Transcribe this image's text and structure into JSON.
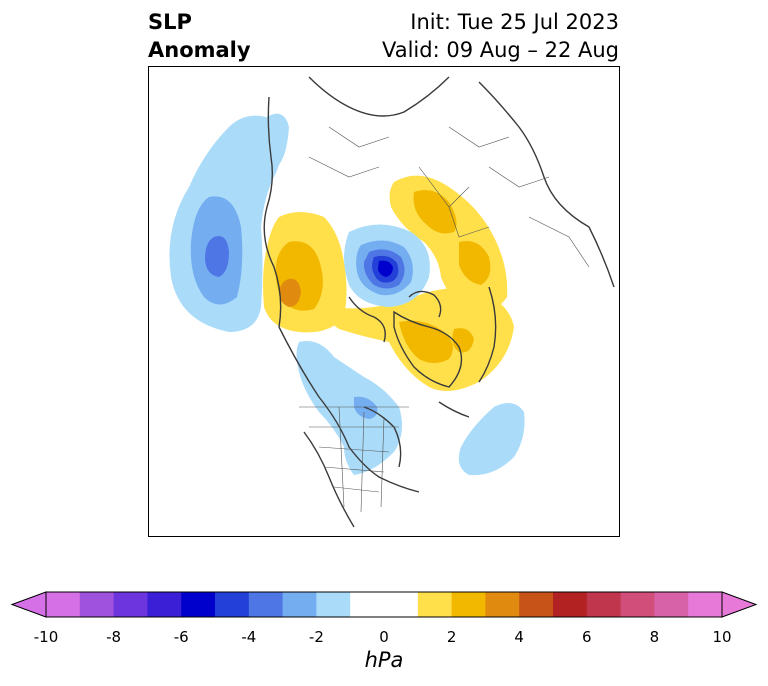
{
  "title": {
    "left_line1": "SLP",
    "left_line2": "Anomaly",
    "right_line1": "Init: Tue 25 Jul 2023",
    "right_line2": "Valid: 09 Aug – 22 Aug"
  },
  "colorbar": {
    "unit": "hPa",
    "tick_labels": [
      "-10",
      "-8",
      "-6",
      "-4",
      "-2",
      "0",
      "2",
      "4",
      "6",
      "8",
      "10"
    ],
    "colors": [
      "#d670e6",
      "#9f52dd",
      "#6d35dd",
      "#3a1fd6",
      "#0000cc",
      "#2340d8",
      "#4e76e4",
      "#74aef0",
      "#aadcfa",
      "#ffffff",
      "#ffffff",
      "#ffe04a",
      "#f2b800",
      "#e08a10",
      "#c85318",
      "#b22222",
      "#c0374d",
      "#d14d7a",
      "#d862a8",
      "#e77ad9"
    ],
    "extend": "both"
  },
  "map": {
    "variable": "Sea level pressure anomaly",
    "projection": "north polar stereographic",
    "anomaly_regions": [
      {
        "sign": "negative",
        "max_hPa": -5,
        "location": "northeast Pacific / Gulf of Alaska"
      },
      {
        "sign": "negative",
        "max_hPa": -6,
        "location": "central Arctic near North Pole"
      },
      {
        "sign": "negative",
        "max_hPa": -2,
        "location": "central Canada / US Midwest"
      },
      {
        "sign": "negative",
        "max_hPa": -2,
        "location": "western North Atlantic"
      },
      {
        "sign": "positive",
        "max_hPa": 4,
        "location": "Alaska / Bering Sea"
      },
      {
        "sign": "positive",
        "max_hPa": 3,
        "location": "Greenland"
      },
      {
        "sign": "positive",
        "max_hPa": 2,
        "location": "Scandinavia / Barents Sea"
      }
    ]
  }
}
